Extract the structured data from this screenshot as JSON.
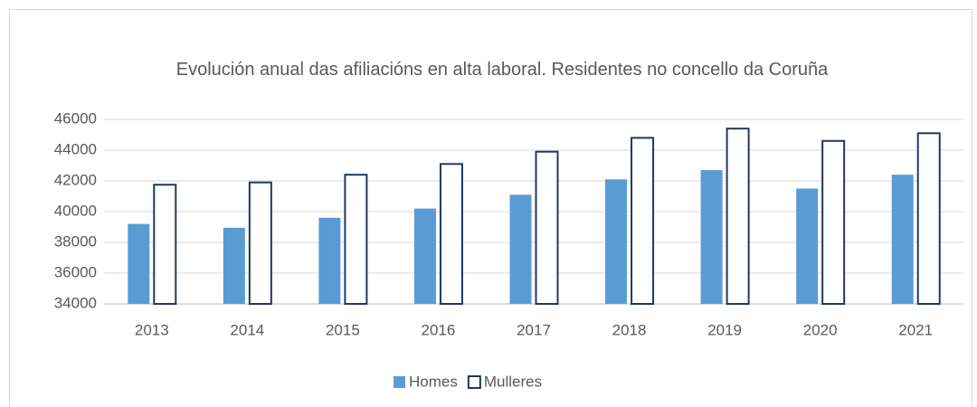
{
  "chart_data": {
    "type": "bar",
    "title": "Evolución anual das afiliacións en alta laboral. Residentes no concello da Coruña",
    "categories": [
      "2013",
      "2014",
      "2015",
      "2016",
      "2017",
      "2018",
      "2019",
      "2020",
      "2021"
    ],
    "series": [
      {
        "name": "Homes",
        "color": "#5b9bd5",
        "values": [
          39200,
          38950,
          39600,
          40200,
          41100,
          42100,
          42700,
          41500,
          42400
        ]
      },
      {
        "name": "Mulleres",
        "color": "#ffffff",
        "values": [
          41750,
          41900,
          42400,
          43100,
          43900,
          44800,
          45400,
          44600,
          45100
        ]
      }
    ],
    "ylim": [
      34000,
      46000
    ],
    "yticks": [
      34000,
      36000,
      38000,
      40000,
      42000,
      44000,
      46000
    ],
    "grid": true,
    "legend": "bottom"
  }
}
